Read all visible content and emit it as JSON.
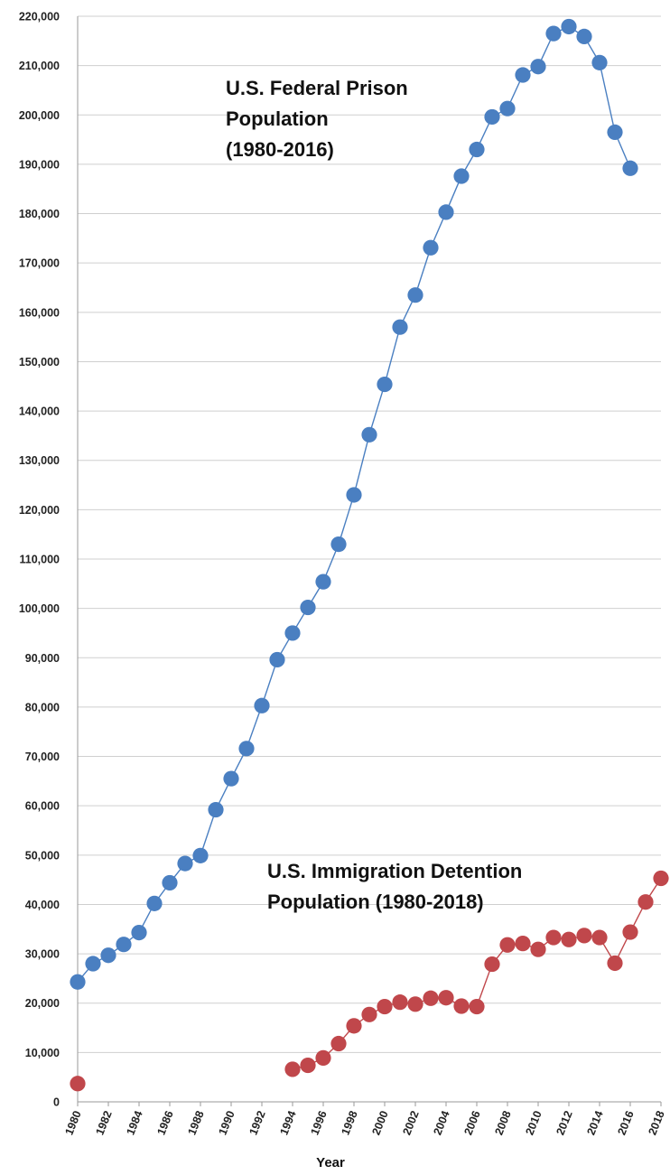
{
  "chart_data": {
    "type": "line",
    "xlabel": "Year",
    "ylabel": "",
    "ylim": [
      0,
      220000
    ],
    "xlim": [
      1980,
      2018
    ],
    "grid": "horizontal",
    "y_ticks": [
      "0",
      "10,000",
      "20,000",
      "30,000",
      "40,000",
      "50,000",
      "60,000",
      "70,000",
      "80,000",
      "90,000",
      "100,000",
      "110,000",
      "120,000",
      "130,000",
      "140,000",
      "150,000",
      "160,000",
      "170,000",
      "180,000",
      "190,000",
      "200,000",
      "210,000",
      "220,000"
    ],
    "x_ticks": [
      "1980",
      "1982",
      "1984",
      "1986",
      "1988",
      "1990",
      "1992",
      "1994",
      "1996",
      "1998",
      "2000",
      "2002",
      "2004",
      "2006",
      "2008",
      "2010",
      "2012",
      "2014",
      "2016",
      "2018"
    ],
    "annotations": {
      "prison": [
        "U.S. Federal Prison",
        "Population",
        "(1980-2016)"
      ],
      "detention": [
        "U.S. Immigration Detention",
        "Population (1980-2018)"
      ]
    },
    "series": [
      {
        "color": "#4a7fc1",
        "x": [
          1980,
          1981,
          1982,
          1983,
          1984,
          1985,
          1986,
          1987,
          1988,
          1989,
          1990,
          1991,
          1992,
          1993,
          1994,
          1995,
          1996,
          1997,
          1998,
          1999,
          2000,
          2001,
          2002,
          2003,
          2004,
          2005,
          2006,
          2007,
          2008,
          2009,
          2010,
          2011,
          2012,
          2013,
          2014,
          2015,
          2016
        ],
        "values": [
          24300,
          28000,
          29700,
          31900,
          34300,
          40200,
          44400,
          48300,
          49900,
          59200,
          65500,
          71600,
          80300,
          89600,
          95000,
          100200,
          105400,
          113000,
          123000,
          135200,
          145400,
          157000,
          163500,
          173100,
          180300,
          187600,
          193000,
          199600,
          201300,
          208100,
          209800,
          216500,
          217900,
          215900,
          210600,
          196500,
          189200
        ]
      },
      {
        "color": "#c0474b",
        "x": [
          1980,
          1994,
          1995,
          1996,
          1997,
          1998,
          1999,
          2000,
          2001,
          2002,
          2003,
          2004,
          2005,
          2006,
          2007,
          2008,
          2009,
          2010,
          2011,
          2012,
          2013,
          2014,
          2015,
          2016,
          2017,
          2018
        ],
        "values": [
          3700,
          6600,
          7400,
          8900,
          11800,
          15400,
          17700,
          19300,
          20200,
          19800,
          21000,
          21100,
          19400,
          19300,
          27900,
          31800,
          32100,
          30900,
          33300,
          32900,
          33700,
          33300,
          28100,
          34400,
          40500,
          45300
        ],
        "break_after_index": 0
      }
    ]
  }
}
